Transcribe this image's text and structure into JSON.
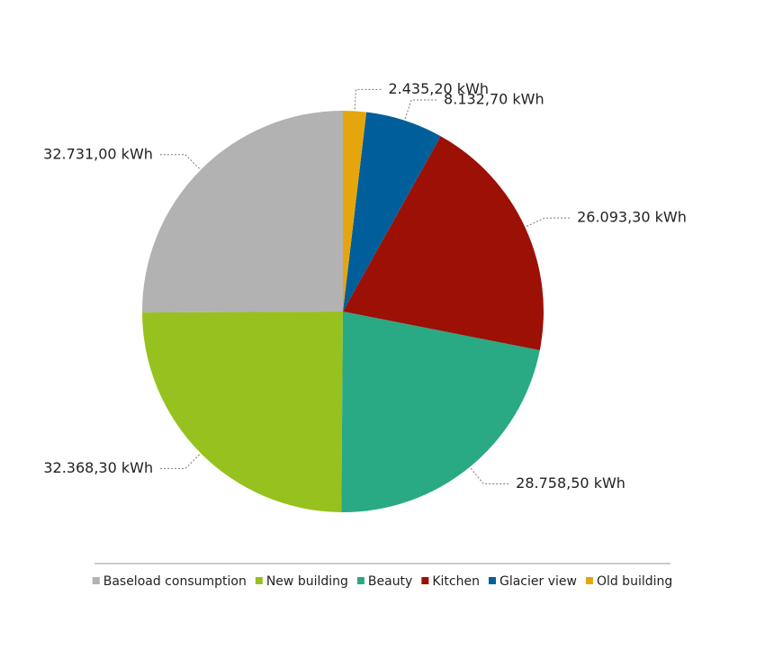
{
  "chart_data": {
    "type": "pie",
    "categories": [
      "Baseload consumption",
      "New building",
      "Beauty",
      "Kitchen",
      "Glacier view",
      "Old building"
    ],
    "values": [
      32731.0,
      32368.3,
      28758.5,
      26093.3,
      8132.7,
      2435.2
    ],
    "value_labels": [
      "32.731,00 kWh",
      "32.368,30 kWh",
      "28.758,50 kWh",
      "26.093,30 kWh",
      "8.132,70 kWh",
      "2.435,20 kWh"
    ],
    "colors": [
      "#b3b2b3",
      "#97c11f",
      "#2aa985",
      "#9c1006",
      "#005f9a",
      "#e5a50d"
    ]
  }
}
